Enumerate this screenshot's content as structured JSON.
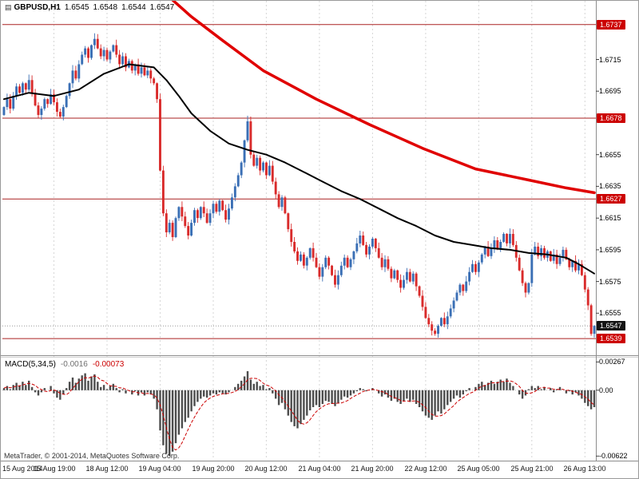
{
  "header": {
    "symbol": "GBPUSD,H1",
    "open": "1.6545",
    "high": "1.6548",
    "low": "1.6544",
    "close": "1.6547"
  },
  "macd_panel": {
    "label": "MACD(5,34,5)",
    "value_main": "-0.0016",
    "value_signal": "-0.00073"
  },
  "footer": {
    "copyright": "MetaTrader, © 2001-2014, MetaQuotes Software Corp."
  },
  "colors": {
    "bull": "#3a6fb5",
    "bear": "#d92b2b",
    "ma_black": "#000000",
    "trend_red": "#e00000",
    "hline": "#aa2222",
    "grid": "#d6d6d6",
    "macd_bar": "#4d4d4d",
    "macd_signal": "#cc0000",
    "badge_red": "#cc0000",
    "badge_dark": "#141414"
  },
  "price_axis": {
    "ticks": [
      {
        "label": "1.6737",
        "type": "badge-red"
      },
      {
        "label": "1.6715",
        "type": "plain"
      },
      {
        "label": "1.6695",
        "type": "plain"
      },
      {
        "label": "1.6678",
        "type": "badge-red"
      },
      {
        "label": "1.6655",
        "type": "plain"
      },
      {
        "label": "1.6635",
        "type": "plain"
      },
      {
        "label": "1.6627",
        "type": "badge-red"
      },
      {
        "label": "1.6615",
        "type": "plain"
      },
      {
        "label": "1.6595",
        "type": "plain"
      },
      {
        "label": "1.6575",
        "type": "plain"
      },
      {
        "label": "1.6555",
        "type": "plain"
      },
      {
        "label": "1.6547",
        "type": "badge-dark"
      },
      {
        "label": "1.6539",
        "type": "badge-red"
      }
    ]
  },
  "macd_axis": {
    "ticks": [
      {
        "label": "0.00267"
      },
      {
        "label": "0.00"
      },
      {
        "label": "-0.00622"
      }
    ]
  },
  "time_axis": {
    "labels": [
      "15 Aug 2014",
      "15 Aug 19:00",
      "18 Aug 12:00",
      "19 Aug 04:00",
      "19 Aug 20:00",
      "20 Aug 12:00",
      "21 Aug 04:00",
      "21 Aug 20:00",
      "22 Aug 12:00",
      "25 Aug 05:00",
      "25 Aug 21:00",
      "26 Aug 13:00"
    ]
  },
  "chart_data": [
    {
      "type": "candlestick",
      "title": "GBPUSD H1",
      "ylim": [
        1.6529,
        1.6752
      ],
      "first_open": 1.668,
      "last_price": 1.6547,
      "hlines": [
        1.6737,
        1.6678,
        1.6627,
        1.6539
      ],
      "grid_indices": [
        16,
        33,
        50,
        67,
        84,
        101,
        118,
        135,
        152,
        169,
        186
      ],
      "closes": [
        1.6685,
        1.669,
        1.6684,
        1.6692,
        1.6698,
        1.6694,
        1.67,
        1.6696,
        1.6702,
        1.6694,
        1.6686,
        1.668,
        1.6684,
        1.669,
        1.6687,
        1.6693,
        1.6688,
        1.6682,
        1.6679,
        1.6685,
        1.6692,
        1.67,
        1.6708,
        1.6703,
        1.6712,
        1.6718,
        1.6722,
        1.6716,
        1.6724,
        1.6728,
        1.6722,
        1.6717,
        1.6721,
        1.6715,
        1.672,
        1.6724,
        1.6718,
        1.6712,
        1.6717,
        1.671,
        1.6714,
        1.6708,
        1.6712,
        1.6706,
        1.671,
        1.6705,
        1.6708,
        1.6703,
        1.67,
        1.669,
        1.6645,
        1.6618,
        1.6606,
        1.6612,
        1.6603,
        1.6615,
        1.6622,
        1.6616,
        1.661,
        1.6604,
        1.6612,
        1.662,
        1.6615,
        1.6622,
        1.6618,
        1.6612,
        1.6618,
        1.6624,
        1.6619,
        1.6626,
        1.662,
        1.6614,
        1.6621,
        1.6628,
        1.6635,
        1.6642,
        1.665,
        1.6664,
        1.6676,
        1.6655,
        1.6648,
        1.6653,
        1.6645,
        1.665,
        1.6642,
        1.6648,
        1.6638,
        1.663,
        1.6622,
        1.6628,
        1.6618,
        1.6608,
        1.66,
        1.6594,
        1.6588,
        1.6592,
        1.6585,
        1.659,
        1.6596,
        1.659,
        1.6584,
        1.6578,
        1.6584,
        1.659,
        1.6585,
        1.6579,
        1.6573,
        1.6579,
        1.6585,
        1.659,
        1.6584,
        1.6589,
        1.6594,
        1.6599,
        1.6604,
        1.6598,
        1.6592,
        1.6597,
        1.6602,
        1.6596,
        1.659,
        1.6584,
        1.6589,
        1.6583,
        1.6577,
        1.6582,
        1.6576,
        1.6571,
        1.6576,
        1.6581,
        1.6575,
        1.658,
        1.6572,
        1.6566,
        1.6559,
        1.6552,
        1.6548,
        1.6544,
        1.6542,
        1.6547,
        1.6552,
        1.6548,
        1.6553,
        1.6558,
        1.6563,
        1.6568,
        1.6573,
        1.6569,
        1.6575,
        1.6581,
        1.6586,
        1.6581,
        1.6587,
        1.6592,
        1.6597,
        1.6591,
        1.6596,
        1.6601,
        1.6596,
        1.66,
        1.6605,
        1.6599,
        1.6605,
        1.6598,
        1.659,
        1.6582,
        1.6574,
        1.6568,
        1.6574,
        1.6592,
        1.6597,
        1.6591,
        1.6596,
        1.659,
        1.6594,
        1.6588,
        1.6592,
        1.6586,
        1.659,
        1.6595,
        1.6589,
        1.6584,
        1.6588,
        1.6582,
        1.6586,
        1.6579,
        1.657,
        1.656,
        1.6542,
        1.6547
      ],
      "overlays": [
        {
          "name": "moving-average-line",
          "color": "#000000",
          "width": 2,
          "points": [
            [
              0,
              1.669
            ],
            [
              8,
              1.6694
            ],
            [
              16,
              1.6692
            ],
            [
              24,
              1.6696
            ],
            [
              32,
              1.6706
            ],
            [
              40,
              1.6712
            ],
            [
              48,
              1.671
            ],
            [
              52,
              1.6702
            ],
            [
              56,
              1.6692
            ],
            [
              60,
              1.6681
            ],
            [
              66,
              1.667
            ],
            [
              72,
              1.6662
            ],
            [
              78,
              1.6658
            ],
            [
              84,
              1.6655
            ],
            [
              90,
              1.665
            ],
            [
              96,
              1.6644
            ],
            [
              102,
              1.6638
            ],
            [
              108,
              1.6632
            ],
            [
              114,
              1.6627
            ],
            [
              120,
              1.6621
            ],
            [
              126,
              1.6615
            ],
            [
              132,
              1.661
            ],
            [
              138,
              1.6604
            ],
            [
              144,
              1.66
            ],
            [
              150,
              1.6598
            ],
            [
              156,
              1.6596
            ],
            [
              162,
              1.6595
            ],
            [
              168,
              1.6593
            ],
            [
              174,
              1.6592
            ],
            [
              180,
              1.659
            ],
            [
              184,
              1.6586
            ],
            [
              189,
              1.658
            ]
          ]
        },
        {
          "name": "trend-line",
          "color": "#e00000",
          "width": 3.5,
          "points": [
            [
              52,
              1.6756
            ],
            [
              60,
              1.6742
            ],
            [
              70,
              1.6727
            ],
            [
              83,
              1.6708
            ],
            [
              100,
              1.669
            ],
            [
              117,
              1.6674
            ],
            [
              134,
              1.6659
            ],
            [
              151,
              1.6646
            ],
            [
              168,
              1.6639
            ],
            [
              180,
              1.6634
            ],
            [
              189,
              1.6631
            ]
          ]
        }
      ]
    },
    {
      "type": "bar",
      "title": "MACD(5,34,5)",
      "ylim": [
        -0.0065,
        0.003
      ],
      "signal_sma": 5,
      "values": [
        0.0002,
        0.0004,
        0.0001,
        0.0005,
        0.0007,
        0.0004,
        0.0008,
        0.0005,
        0.0009,
        0.0003,
        -0.0002,
        -0.0005,
        -0.0002,
        0.0002,
        0.0,
        0.0004,
        -0.0003,
        -0.0007,
        -0.0009,
        -0.0004,
        0.0002,
        0.0008,
        0.0012,
        0.0007,
        0.0011,
        0.0014,
        0.0016,
        0.0009,
        0.0013,
        0.0015,
        0.0008,
        0.0003,
        0.0005,
        0.0001,
        0.0004,
        0.0006,
        0.0002,
        -0.0002,
        0.0001,
        -0.0003,
        0.0,
        -0.0004,
        -0.0001,
        -0.0005,
        -0.0002,
        -0.0005,
        -0.0002,
        -0.0004,
        -0.0008,
        -0.0018,
        -0.0038,
        -0.0052,
        -0.006,
        -0.0062,
        -0.0058,
        -0.005,
        -0.0042,
        -0.0036,
        -0.003,
        -0.0026,
        -0.002,
        -0.0015,
        -0.0011,
        -0.0008,
        -0.0006,
        -0.0007,
        -0.0005,
        -0.0003,
        -0.0004,
        -0.0002,
        -0.0003,
        -0.0004,
        -0.0002,
        0.0,
        0.0003,
        0.0006,
        0.0009,
        0.0013,
        0.0018,
        0.001,
        0.0006,
        0.0008,
        0.0004,
        0.0005,
        0.0001,
        0.0002,
        -0.0003,
        -0.0008,
        -0.0014,
        -0.0012,
        -0.0018,
        -0.0024,
        -0.003,
        -0.0034,
        -0.0036,
        -0.0032,
        -0.0028,
        -0.0024,
        -0.0019,
        -0.0016,
        -0.0014,
        -0.0016,
        -0.0013,
        -0.001,
        -0.0011,
        -0.0013,
        -0.0015,
        -0.0012,
        -0.0009,
        -0.0006,
        -0.0007,
        -0.0005,
        -0.0003,
        -0.0001,
        0.0002,
        0.0001,
        -0.0001,
        0.0,
        0.0002,
        0.0,
        -0.0003,
        -0.0006,
        -0.0004,
        -0.0007,
        -0.001,
        -0.0008,
        -0.0011,
        -0.0013,
        -0.001,
        -0.0008,
        -0.0011,
        -0.0009,
        -0.0013,
        -0.0016,
        -0.002,
        -0.0024,
        -0.0026,
        -0.0028,
        -0.0024,
        -0.002,
        -0.0022,
        -0.0018,
        -0.0014,
        -0.0011,
        -0.0008,
        -0.0005,
        -0.0007,
        -0.0004,
        -0.0001,
        0.0002,
        0.0,
        0.0003,
        0.0006,
        0.0008,
        0.0005,
        0.0007,
        0.0009,
        0.0006,
        0.0008,
        0.001,
        0.0008,
        0.0011,
        0.0007,
        0.0004,
        0.0,
        -0.0004,
        -0.0008,
        -0.0005,
        0.0001,
        0.0004,
        0.0002,
        0.0004,
        0.0001,
        0.0003,
        0.0,
        0.0002,
        -0.0002,
        0.0001,
        0.0003,
        0.0,
        -0.0003,
        -0.0001,
        -0.0004,
        -0.0002,
        -0.0005,
        -0.0008,
        -0.0012,
        -0.0015,
        -0.0018,
        -0.0016
      ]
    }
  ]
}
